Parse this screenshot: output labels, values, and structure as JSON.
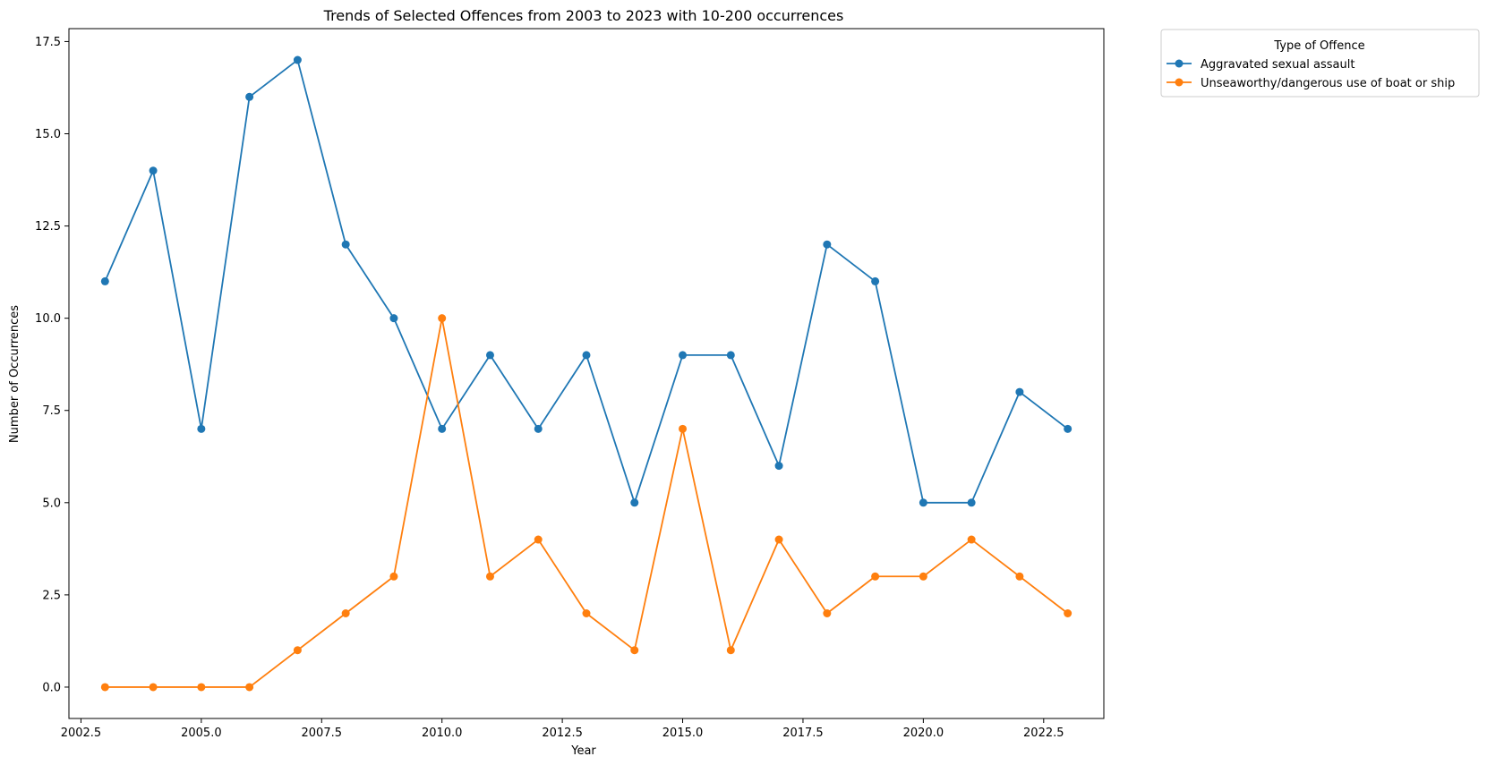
{
  "chart_data": {
    "type": "line",
    "title": "Trends of Selected Offences from 2003 to 2023 with 10-200 occurrences",
    "xlabel": "Year",
    "ylabel": "Number of Occurrences",
    "xlim": [
      2002.25,
      2023.75
    ],
    "ylim": [
      -0.85,
      17.85
    ],
    "x_ticks": [
      2002.5,
      2005.0,
      2007.5,
      2010.0,
      2012.5,
      2015.0,
      2017.5,
      2020.0,
      2022.5
    ],
    "x_tick_labels": [
      "2002.5",
      "2005.0",
      "2007.5",
      "2010.0",
      "2012.5",
      "2015.0",
      "2017.5",
      "2020.0",
      "2022.5"
    ],
    "y_ticks": [
      0,
      2.5,
      5,
      7.5,
      10,
      12.5,
      15,
      17.5
    ],
    "y_tick_labels": [
      "0.0",
      "2.5",
      "5.0",
      "7.5",
      "10.0",
      "12.5",
      "15.0",
      "17.5"
    ],
    "grid": false,
    "legend": {
      "title": "Type of Offence",
      "placement": "outside upper-right"
    },
    "x": [
      2003,
      2004,
      2005,
      2006,
      2007,
      2008,
      2009,
      2010,
      2011,
      2012,
      2013,
      2014,
      2015,
      2016,
      2017,
      2018,
      2019,
      2020,
      2021,
      2022,
      2023
    ],
    "series": [
      {
        "name": "Aggravated sexual assault",
        "color": "#1f77b4",
        "values": [
          11,
          14,
          7,
          16,
          17,
          12,
          10,
          7,
          9,
          7,
          9,
          5,
          9,
          9,
          6,
          12,
          11,
          5,
          5,
          8,
          7
        ]
      },
      {
        "name": "Unseaworthy/dangerous use of boat or ship",
        "color": "#ff7f0e",
        "values": [
          0,
          0,
          0,
          0,
          1,
          2,
          3,
          10,
          3,
          4,
          2,
          1,
          7,
          1,
          4,
          2,
          3,
          3,
          4,
          3,
          2
        ]
      }
    ]
  }
}
